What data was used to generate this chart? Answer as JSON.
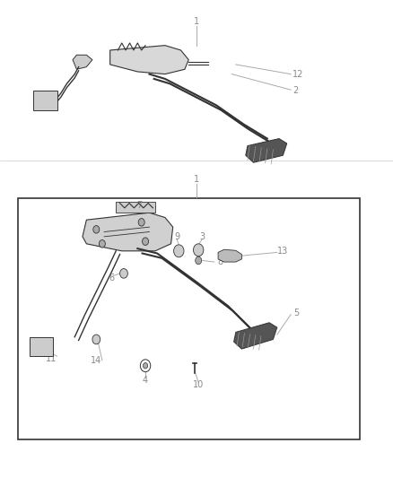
{
  "bg_color": "#ffffff",
  "line_color": "#333333",
  "label_color": "#888888",
  "leader_color": "#aaaaaa",
  "box_color": "#333333",
  "fig_width": 4.38,
  "fig_height": 5.33,
  "dpi": 100
}
